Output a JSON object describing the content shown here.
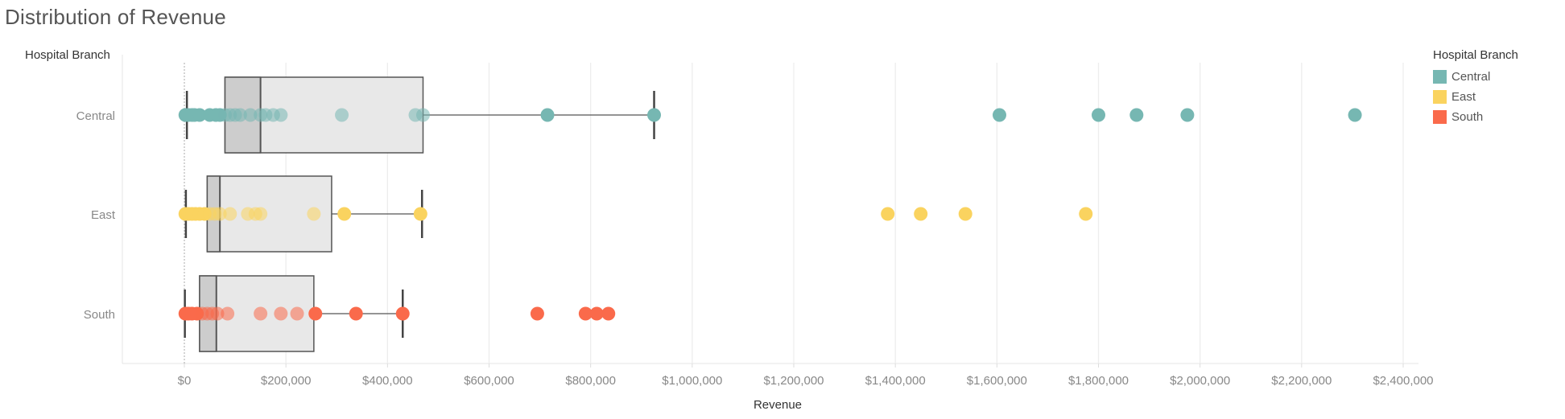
{
  "colors": {
    "Central": "#76B7B2",
    "East": "#FAD35F",
    "South": "#FA6A4B",
    "box_fill": "#E8E8E8",
    "box_inner": "#CDCDCD",
    "box_stroke": "#555555",
    "grid": "#EDEDED"
  },
  "chart_data": {
    "type": "scatter",
    "subtype": "box-plot-with-points",
    "title": "Distribution of Revenue",
    "xlabel": "Revenue",
    "ylabel": "Hospital Branch",
    "xlim": [
      -50000,
      2420000
    ],
    "x_ticks": [
      0,
      200000,
      400000,
      600000,
      800000,
      1000000,
      1200000,
      1400000,
      1600000,
      1800000,
      2000000,
      2200000,
      2400000
    ],
    "x_tick_labels": [
      "$0",
      "$200,000",
      "$400,000",
      "$600,000",
      "$800,000",
      "$1,000,000",
      "$1,200,000",
      "$1,400,000",
      "$1,600,000",
      "$1,800,000",
      "$2,000,000",
      "$2,200,000",
      "$2,400,000"
    ],
    "grid": "vertical",
    "legend": {
      "title": "Hospital Branch",
      "placement": "right",
      "entries": [
        "Central",
        "East",
        "South"
      ]
    },
    "categories": [
      "Central",
      "East",
      "South"
    ],
    "boxes": [
      {
        "name": "Central",
        "whisker_low": 5000,
        "q1": 80000,
        "median": 150000,
        "q3": 470000,
        "whisker_high": 925000
      },
      {
        "name": "East",
        "whisker_low": 3000,
        "q1": 45000,
        "median": 70000,
        "q3": 290000,
        "whisker_high": 468000
      },
      {
        "name": "South",
        "whisker_low": 1000,
        "q1": 30000,
        "median": 63000,
        "q3": 255000,
        "whisker_high": 430000
      }
    ],
    "series": [
      {
        "name": "Central",
        "values": [
          2000,
          8000,
          15000,
          20000,
          30000,
          50000,
          62000,
          70000,
          80000,
          90000,
          100000,
          110000,
          130000,
          150000,
          160000,
          175000,
          190000,
          310000,
          455000,
          470000,
          715000,
          925000,
          1605000,
          1800000,
          1875000,
          1975000,
          2305000
        ]
      },
      {
        "name": "East",
        "values": [
          2000,
          8000,
          15000,
          22000,
          30000,
          40000,
          50000,
          60000,
          70000,
          90000,
          125000,
          140000,
          150000,
          255000,
          315000,
          465000,
          1385000,
          1450000,
          1538000,
          1775000
        ]
      },
      {
        "name": "South",
        "values": [
          2000,
          8000,
          15000,
          25000,
          35000,
          45000,
          55000,
          65000,
          85000,
          150000,
          190000,
          222000,
          258000,
          338000,
          430000,
          695000,
          790000,
          812000,
          835000
        ]
      }
    ]
  }
}
